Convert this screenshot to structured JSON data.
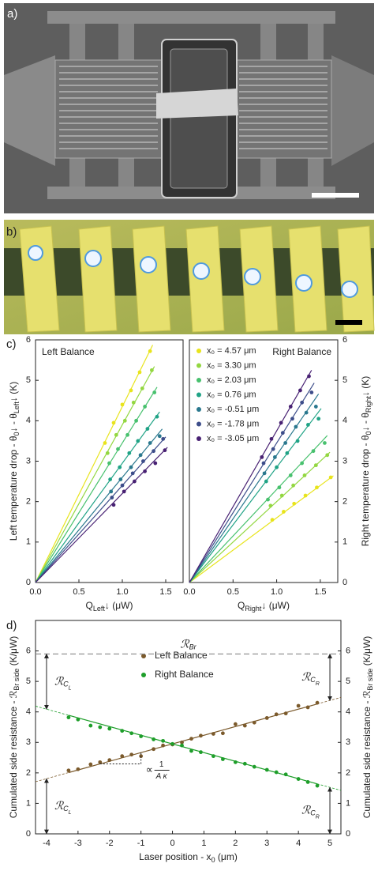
{
  "figure": {
    "panel_labels": [
      "a)",
      "b)",
      "c)",
      "d)"
    ]
  },
  "chart_data": [
    {
      "type": "scatter",
      "title": "Left Balance",
      "xlabel": [
        "Q",
        "Left",
        "↓ (μW)"
      ],
      "ylabel": [
        "Left temperature drop - θ",
        "0",
        "↓ - θ",
        "Left",
        "↓ (K)"
      ],
      "xlim": [
        0,
        1.7
      ],
      "xticks": [
        {
          "value": 0,
          "label": "0.0"
        },
        {
          "value": 0.5,
          "label": "0.5"
        },
        {
          "value": 1,
          "label": "1.0"
        },
        {
          "value": 1.5,
          "label": "1.5"
        }
      ],
      "ylim": [
        0,
        6
      ],
      "yticks": [
        0,
        1,
        2,
        3,
        4,
        5,
        6
      ],
      "yaxis_side": "left",
      "series": [
        {
          "color": "#e8e41c",
          "fit_slope": 4.35,
          "x": [
            0.8,
            0.9,
            1.0,
            1.1,
            1.2,
            1.32
          ],
          "values": [
            3.45,
            3.95,
            4.4,
            4.75,
            5.2,
            5.72
          ]
        },
        {
          "color": "#93d741",
          "fit_slope": 3.9,
          "x": [
            0.83,
            0.93,
            1.03,
            1.13,
            1.23,
            1.34
          ],
          "values": [
            3.2,
            3.65,
            4.0,
            4.45,
            4.8,
            5.25
          ]
        },
        {
          "color": "#48c16e",
          "fit_slope": 3.45,
          "x": [
            0.85,
            0.95,
            1.06,
            1.16,
            1.26,
            1.37
          ],
          "values": [
            2.95,
            3.3,
            3.65,
            4.0,
            4.35,
            4.7
          ]
        },
        {
          "color": "#20a386",
          "fit_slope": 2.95,
          "x": [
            0.86,
            0.97,
            1.08,
            1.18,
            1.29,
            1.4
          ],
          "values": [
            2.55,
            2.85,
            3.2,
            3.5,
            3.8,
            4.1
          ]
        },
        {
          "color": "#2a788e",
          "fit_slope": 2.6,
          "x": [
            0.87,
            0.98,
            1.1,
            1.21,
            1.32,
            1.43
          ],
          "values": [
            2.25,
            2.55,
            2.85,
            3.15,
            3.45,
            3.62
          ]
        },
        {
          "color": "#3d4d8a",
          "fit_slope": 2.4,
          "x": [
            0.88,
            1.0,
            1.12,
            1.24,
            1.36,
            1.47
          ],
          "values": [
            2.1,
            2.4,
            2.7,
            3.0,
            3.25,
            3.55
          ]
        },
        {
          "color": "#482173",
          "fit_slope": 2.2,
          "x": [
            0.9,
            1.02,
            1.14,
            1.26,
            1.38,
            1.49
          ],
          "values": [
            1.92,
            2.25,
            2.5,
            2.75,
            2.95,
            3.27
          ]
        }
      ]
    },
    {
      "type": "scatter",
      "title": "Right Balance",
      "xlabel": [
        "Q",
        "Right",
        "↓ (μW)"
      ],
      "ylabel": [
        "Right temperature drop - θ",
        "0",
        "↓ - θ",
        "Right",
        "↓ (K)"
      ],
      "xlim": [
        0,
        1.7
      ],
      "xticks": [
        {
          "value": 0,
          "label": "0.0"
        },
        {
          "value": 0.5,
          "label": "0.5"
        },
        {
          "value": 1,
          "label": "1.0"
        },
        {
          "value": 1.5,
          "label": "1.5"
        }
      ],
      "ylim": [
        0,
        6
      ],
      "yticks": [
        0,
        1,
        2,
        3,
        4,
        5,
        6
      ],
      "yaxis_side": "right",
      "legend": "upper left",
      "series": [
        {
          "name": "x₀ =  4.57 μm",
          "color": "#e8e41c",
          "fit_slope": 1.6,
          "x": [
            0.95,
            1.08,
            1.2,
            1.33,
            1.46,
            1.62
          ],
          "values": [
            1.55,
            1.75,
            1.95,
            2.15,
            2.35,
            2.6
          ]
        },
        {
          "name": "x₀ =  3.30 μm",
          "color": "#93d741",
          "fit_slope": 2.0,
          "x": [
            0.93,
            1.06,
            1.19,
            1.32,
            1.45,
            1.58
          ],
          "values": [
            1.9,
            2.15,
            2.4,
            2.65,
            2.9,
            3.15
          ]
        },
        {
          "name": "x₀ =  2.03 μm",
          "color": "#48c16e",
          "fit_slope": 2.3,
          "x": [
            0.9,
            1.03,
            1.16,
            1.29,
            1.42,
            1.55
          ],
          "values": [
            2.05,
            2.35,
            2.65,
            2.95,
            3.25,
            3.45
          ]
        },
        {
          "name": "x₀ =  0.76 μm",
          "color": "#20a386",
          "fit_slope": 2.85,
          "x": [
            0.88,
            1.0,
            1.12,
            1.24,
            1.36,
            1.48
          ],
          "values": [
            2.5,
            2.85,
            3.2,
            3.5,
            3.9,
            4.05
          ]
        },
        {
          "name": "x₀ = -0.51 μm",
          "color": "#2a788e",
          "fit_slope": 3.15,
          "x": [
            0.86,
            0.98,
            1.1,
            1.22,
            1.34,
            1.45
          ],
          "values": [
            2.7,
            3.1,
            3.45,
            3.85,
            4.2,
            4.35
          ]
        },
        {
          "name": "x₀ = -1.78 μm",
          "color": "#3d4d8a",
          "fit_slope": 3.45,
          "x": [
            0.85,
            0.96,
            1.07,
            1.18,
            1.29,
            1.4
          ],
          "values": [
            2.95,
            3.3,
            3.7,
            4.05,
            4.45,
            4.7
          ]
        },
        {
          "name": "x₀ = -3.05 μm",
          "color": "#482173",
          "fit_slope": 3.75,
          "x": [
            0.83,
            0.94,
            1.05,
            1.16,
            1.27,
            1.37
          ],
          "values": [
            3.1,
            3.55,
            3.95,
            4.35,
            4.75,
            5.1
          ]
        }
      ]
    },
    {
      "type": "scatter",
      "xlabel": [
        "Laser position - x",
        "0",
        " (μm)"
      ],
      "ylabel": [
        "Cumulated side resistance - ℛ",
        "Br side",
        " (K/μW)"
      ],
      "y2label": [
        "Cumulated side resistance - ℛ",
        "Br side",
        " (K/μW)"
      ],
      "xlim": [
        -4.35,
        5.35
      ],
      "xticks": [
        -4,
        -3,
        -2,
        -1,
        0,
        1,
        2,
        3,
        4,
        5
      ],
      "ylim": [
        0,
        7
      ],
      "yticks": [
        0,
        1,
        2,
        3,
        4,
        5,
        6
      ],
      "y2lim": [
        0,
        7
      ],
      "y2ticks": [
        0,
        1,
        2,
        3,
        4,
        5,
        6
      ],
      "legend": "upper center",
      "x": [
        -3.3,
        -3.0,
        -2.6,
        -2.3,
        -2.0,
        -1.6,
        -1.3,
        -1.0,
        -0.6,
        -0.3,
        0.0,
        0.3,
        0.6,
        0.9,
        1.3,
        1.6,
        2.0,
        2.3,
        2.6,
        3.0,
        3.3,
        3.6,
        4.0,
        4.3,
        4.6
      ],
      "series": [
        {
          "name": "Left Balance",
          "color": "#7b5a2c",
          "fit": {
            "slope": 0.285,
            "intercept": 2.95
          },
          "values": [
            2.08,
            2.12,
            2.28,
            2.35,
            2.42,
            2.55,
            2.6,
            2.55,
            2.78,
            2.9,
            2.93,
            3.0,
            3.12,
            3.22,
            3.28,
            3.3,
            3.6,
            3.55,
            3.65,
            3.8,
            3.92,
            3.95,
            4.2,
            4.15,
            4.3
          ]
        },
        {
          "name": "Right Balance",
          "color": "#1e9e2a",
          "fit": {
            "slope": -0.285,
            "intercept": 2.95
          },
          "values": [
            3.82,
            3.75,
            3.55,
            3.5,
            3.45,
            3.38,
            3.3,
            3.2,
            3.1,
            3.05,
            2.95,
            2.9,
            2.72,
            2.68,
            2.55,
            2.45,
            2.35,
            2.3,
            2.2,
            2.1,
            2.02,
            1.95,
            1.8,
            1.7,
            1.58
          ]
        }
      ],
      "reference_line": {
        "value": 5.9,
        "label": [
          "ℛ",
          "Br"
        ]
      },
      "annotations": {
        "resistance_left": [
          "ℛ",
          "C",
          "L"
        ],
        "resistance_right": [
          "ℛ",
          "C",
          "R"
        ],
        "slope": {
          "symbol": "∝",
          "numerator": "1",
          "denominator": "A κ"
        }
      }
    }
  ]
}
